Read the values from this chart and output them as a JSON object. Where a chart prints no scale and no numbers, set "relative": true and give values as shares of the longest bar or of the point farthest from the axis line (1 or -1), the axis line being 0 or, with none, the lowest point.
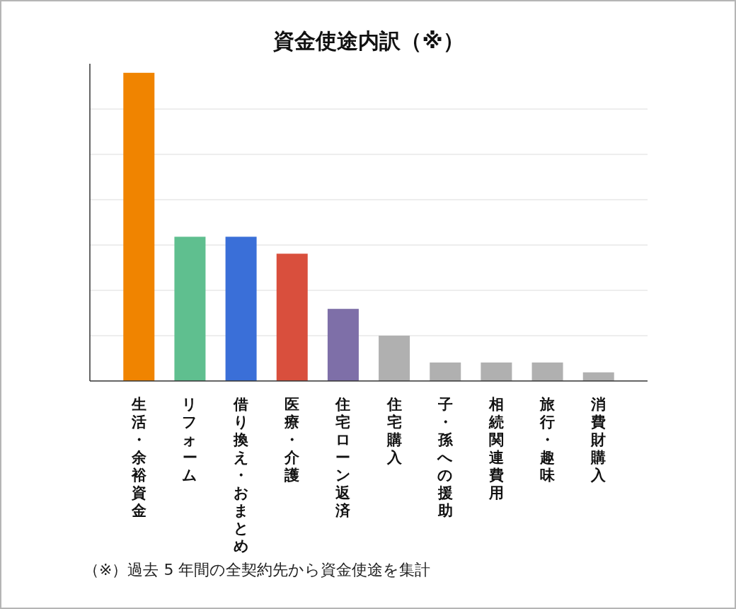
{
  "chart_data": {
    "type": "bar",
    "title": "資金使途内訳（※）",
    "categories": [
      "生活・余裕資金",
      "リフォーム",
      "借り換え・おまとめ",
      "医療・介護",
      "住宅ローン返済",
      "住宅購入",
      "子・孫への援助",
      "相続関連費用",
      "旅行・趣味",
      "消費財購入"
    ],
    "values": [
      1,
      0.468,
      0.468,
      0.413,
      0.234,
      0.147,
      0.06,
      0.06,
      0.06,
      0.028
    ],
    "colors": [
      "#f08400",
      "#5fbf8f",
      "#3a6fd8",
      "#d94f3d",
      "#7e6fa8",
      "#b0b0b0",
      "#b0b0b0",
      "#b0b0b0",
      "#b0b0b0",
      "#b0b0b0"
    ],
    "relative": true,
    "grid": "y",
    "annotations": [
      "（※）過去 5 年間の全契約先から資金使途を集計"
    ]
  }
}
